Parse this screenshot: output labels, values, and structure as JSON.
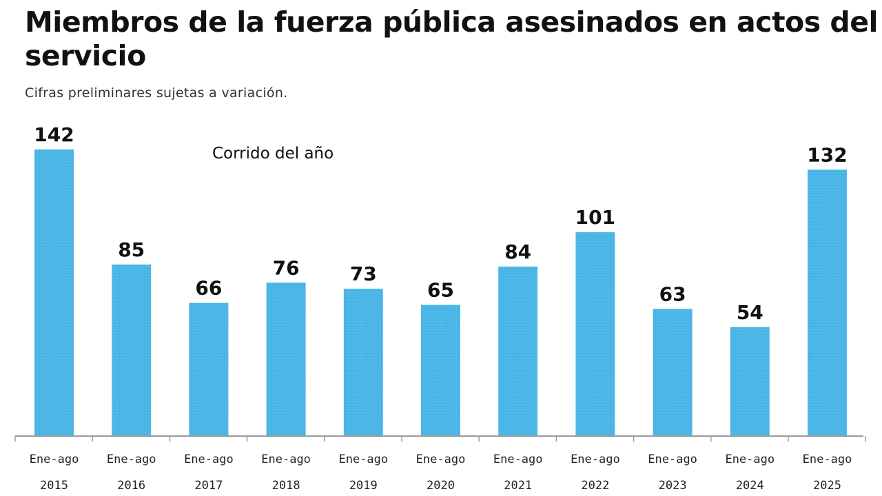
{
  "chart_data": {
    "type": "bar",
    "title": "Miembros de la fuerza pública asesinados en actos del servicio",
    "subtitle": "Cifras preliminares sujetas a variación.",
    "annotation": "Corrido del año",
    "categories": [
      [
        "Ene-ago",
        "2015"
      ],
      [
        "Ene-ago",
        "2016"
      ],
      [
        "Ene-ago",
        "2017"
      ],
      [
        "Ene-ago",
        "2018"
      ],
      [
        "Ene-ago",
        "2019"
      ],
      [
        "Ene-ago",
        "2020"
      ],
      [
        "Ene-ago",
        "2021"
      ],
      [
        "Ene-ago",
        "2022"
      ],
      [
        "Ene-ago",
        "2023"
      ],
      [
        "Ene-ago",
        "2024"
      ],
      [
        "Ene-ago",
        "2025"
      ]
    ],
    "values": [
      142,
      85,
      66,
      76,
      73,
      65,
      84,
      101,
      63,
      54,
      132
    ],
    "xlabel": "",
    "ylabel": "",
    "ylim": [
      0,
      142
    ],
    "grid": false,
    "legend": "none",
    "bar_color": "#4db8e8",
    "axis_color": "#9a9a9a"
  }
}
